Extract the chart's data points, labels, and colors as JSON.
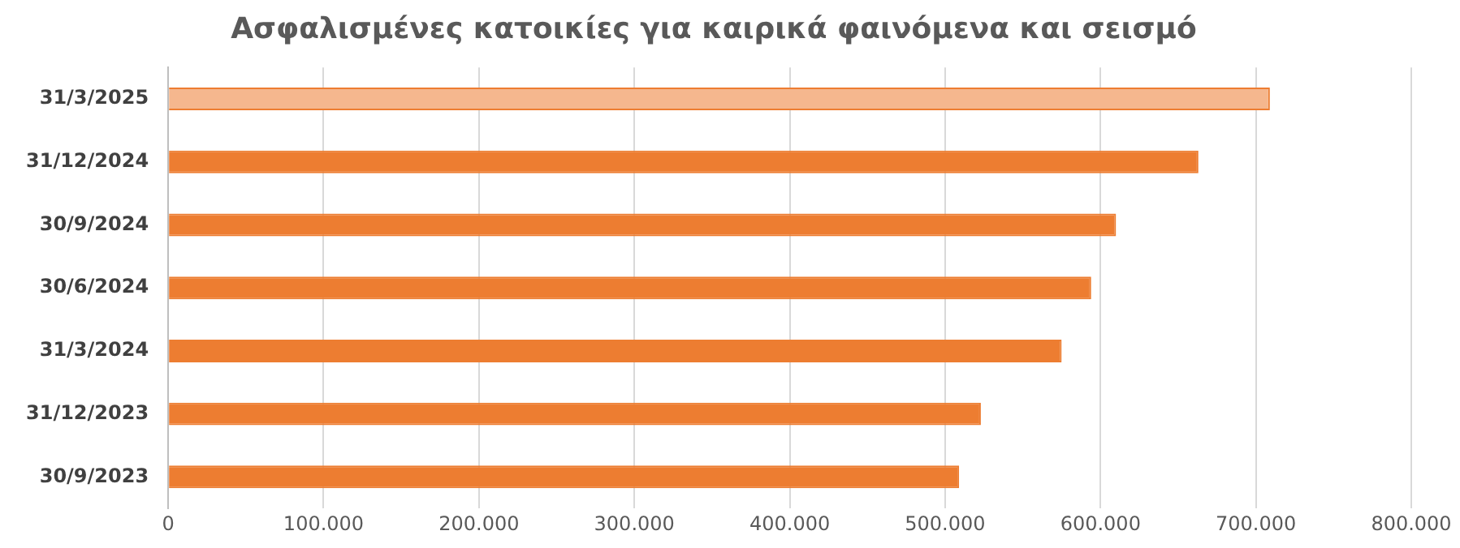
{
  "chart_data": {
    "type": "bar",
    "orientation": "horizontal",
    "title": "Ασφαλισμένες κατοικίες για καιρικά φαινόμενα και σεισμό",
    "categories": [
      "31/3/2025",
      "31/12/2024",
      "30/9/2024",
      "30/6/2024",
      "31/3/2024",
      "31/12/2023",
      "30/9/2023"
    ],
    "values": [
      709000,
      663000,
      610000,
      594000,
      575000,
      523000,
      509000
    ],
    "colors": [
      "#f5b78e",
      "#ed7d31",
      "#ed7d31",
      "#ed7d31",
      "#ed7d31",
      "#ed7d31",
      "#ed7d31"
    ],
    "xlim": [
      0,
      800000
    ],
    "xticks": [
      {
        "value": 0,
        "label": "0"
      },
      {
        "value": 100000,
        "label": "100.000"
      },
      {
        "value": 200000,
        "label": "200.000"
      },
      {
        "value": 300000,
        "label": "300.000"
      },
      {
        "value": 400000,
        "label": "400.000"
      },
      {
        "value": 500000,
        "label": "500.000"
      },
      {
        "value": 600000,
        "label": "600.000"
      },
      {
        "value": 700000,
        "label": "700.000"
      },
      {
        "value": 800000,
        "label": "800.000"
      }
    ],
    "grid": "x",
    "legend": false
  }
}
